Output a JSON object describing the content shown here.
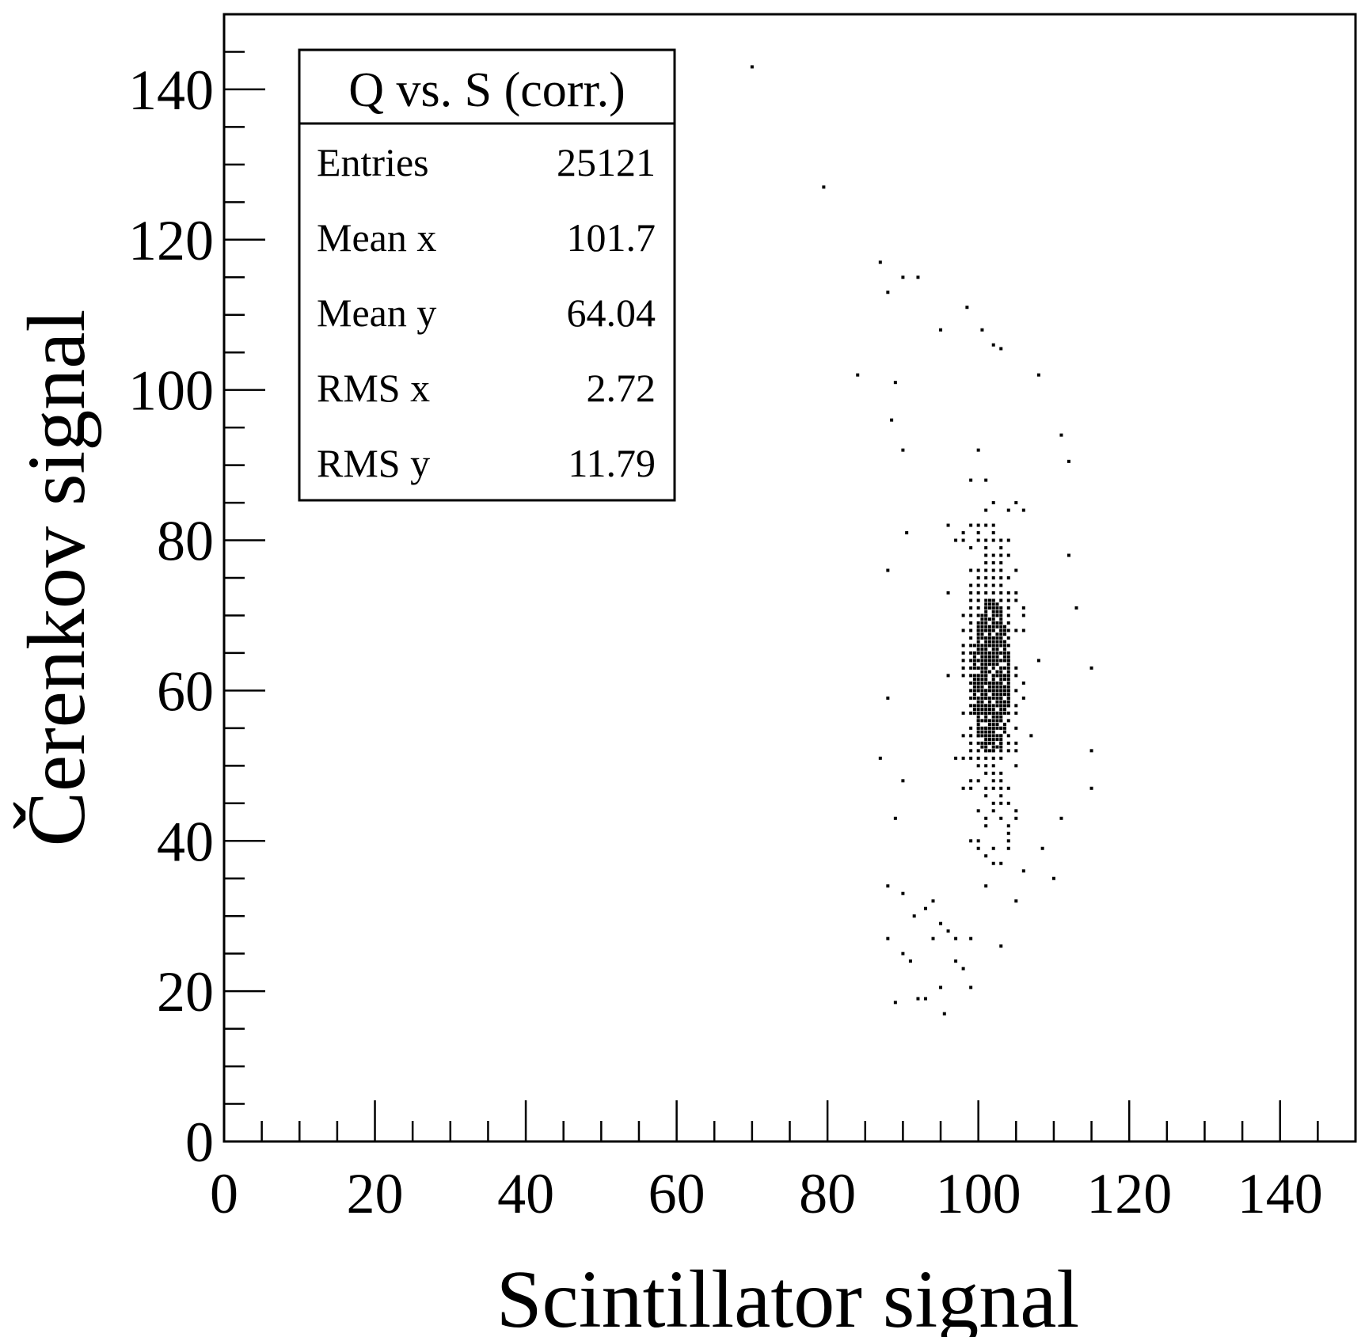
{
  "chart_data": {
    "type": "scatter",
    "title": "",
    "xlabel": "Scintillator signal",
    "ylabel": "Čerenkov signal",
    "xlim": [
      0,
      150
    ],
    "ylim": [
      0,
      150
    ],
    "x_ticks": [
      0,
      20,
      40,
      60,
      80,
      100,
      120,
      140
    ],
    "y_ticks": [
      0,
      20,
      40,
      60,
      80,
      100,
      120,
      140
    ],
    "x_tick_labels": [
      "0",
      "20",
      "40",
      "60",
      "80",
      "100",
      "120",
      "140"
    ],
    "y_tick_labels": [
      "0",
      "20",
      "40",
      "60",
      "80",
      "100",
      "120",
      "140"
    ],
    "grid": false,
    "marker_color": "#000000",
    "stats_box": {
      "name": "Q vs. S (corr.)",
      "placement": "top-left",
      "rows": [
        {
          "label": "Entries",
          "value": "25121"
        },
        {
          "label": "Mean x",
          "value": "101.7"
        },
        {
          "label": "Mean y",
          "value": "64.04"
        },
        {
          "label": "RMS x",
          "value": "2.72"
        },
        {
          "label": "RMS y",
          "value": "11.79"
        }
      ]
    },
    "distribution": {
      "entries": 25121,
      "mean_x": 101.7,
      "mean_y": 64.04,
      "rms_x": 2.72,
      "rms_y": 11.79,
      "core_center": [
        101.5,
        60
      ],
      "core_x_range": [
        99.5,
        104
      ],
      "core_y_range": [
        52,
        72
      ]
    },
    "points": [
      [
        70,
        143
      ],
      [
        79.5,
        127
      ],
      [
        87,
        117
      ],
      [
        88,
        113
      ],
      [
        90,
        115
      ],
      [
        92,
        115
      ],
      [
        98.5,
        111
      ],
      [
        95,
        108
      ],
      [
        100.5,
        108
      ],
      [
        84,
        102
      ],
      [
        102,
        106
      ],
      [
        103,
        105.5
      ],
      [
        89,
        101
      ],
      [
        88.5,
        96
      ],
      [
        90,
        92
      ],
      [
        111,
        94
      ],
      [
        112,
        90.5
      ],
      [
        108,
        102
      ],
      [
        90.5,
        81
      ],
      [
        88,
        76
      ],
      [
        112,
        78
      ],
      [
        113,
        71
      ],
      [
        115,
        63
      ],
      [
        88,
        59
      ],
      [
        87,
        51
      ],
      [
        90,
        48
      ],
      [
        115,
        52
      ],
      [
        115,
        47
      ],
      [
        111,
        43
      ],
      [
        89,
        43
      ],
      [
        88,
        34
      ],
      [
        90,
        33
      ],
      [
        88,
        27
      ],
      [
        90,
        25
      ],
      [
        91,
        24
      ],
      [
        91.5,
        30
      ],
      [
        93,
        31
      ],
      [
        94,
        32
      ],
      [
        95,
        29
      ],
      [
        96,
        28
      ],
      [
        94,
        27
      ],
      [
        97,
        27
      ],
      [
        98,
        23
      ],
      [
        97,
        24
      ],
      [
        99,
        20.5
      ],
      [
        95,
        20.5
      ],
      [
        93,
        19
      ],
      [
        92,
        19
      ],
      [
        89,
        18.5
      ],
      [
        95.5,
        17
      ],
      [
        105,
        32
      ],
      [
        101,
        34
      ],
      [
        106,
        36
      ],
      [
        110,
        35
      ],
      [
        99,
        27
      ],
      [
        108.5,
        39
      ]
    ]
  }
}
